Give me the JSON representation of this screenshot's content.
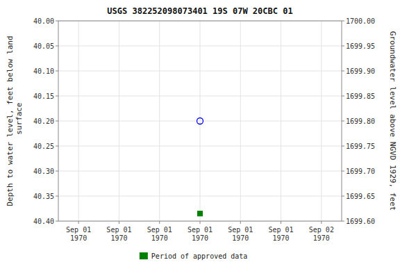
{
  "chart_data": {
    "type": "scatter",
    "title": "USGS 382252098073401 19S 07W 20CBC 01",
    "y_label": "Depth to water level, feet below land\n surface",
    "y2_label": "Groundwater level above NGVD 1929, feet",
    "categories": [
      "Sep 01\n1970",
      "Sep 01\n1970",
      "Sep 01\n1970",
      "Sep 01\n1970",
      "Sep 01\n1970",
      "Sep 01\n1970",
      "Sep 02\n1970"
    ],
    "series": [
      {
        "color": "blue",
        "marker": "circle-open",
        "values": [
          null,
          null,
          null,
          40.2,
          null,
          null,
          null
        ]
      },
      {
        "name": "Period of approved data",
        "color": "green",
        "marker": "square",
        "values": [
          null,
          null,
          null,
          40.385,
          null,
          null,
          null
        ]
      }
    ],
    "ylim": [
      40.4,
      40.0
    ],
    "yticks": [
      {
        "value": 40.0,
        "label": "40.00"
      },
      {
        "value": 40.05,
        "label": "40.05"
      },
      {
        "value": 40.1,
        "label": "40.10"
      },
      {
        "value": 40.15,
        "label": "40.15"
      },
      {
        "value": 40.2,
        "label": "40.20"
      },
      {
        "value": 40.25,
        "label": "40.25"
      },
      {
        "value": 40.3,
        "label": "40.30"
      },
      {
        "value": 40.35,
        "label": "40.35"
      },
      {
        "value": 40.4,
        "label": "40.40"
      }
    ],
    "y2lim": [
      1699.6,
      1700.0
    ],
    "y2ticks": [
      {
        "value": 1700.0,
        "label": "1700.00"
      },
      {
        "value": 1699.95,
        "label": "1699.95"
      },
      {
        "value": 1699.9,
        "label": "1699.90"
      },
      {
        "value": 1699.85,
        "label": "1699.85"
      },
      {
        "value": 1699.8,
        "label": "1699.80"
      },
      {
        "value": 1699.75,
        "label": "1699.75"
      },
      {
        "value": 1699.7,
        "label": "1699.70"
      },
      {
        "value": 1699.65,
        "label": "1699.65"
      },
      {
        "value": 1699.6,
        "label": "1699.60"
      }
    ],
    "grid": true,
    "legend": "bottom"
  }
}
